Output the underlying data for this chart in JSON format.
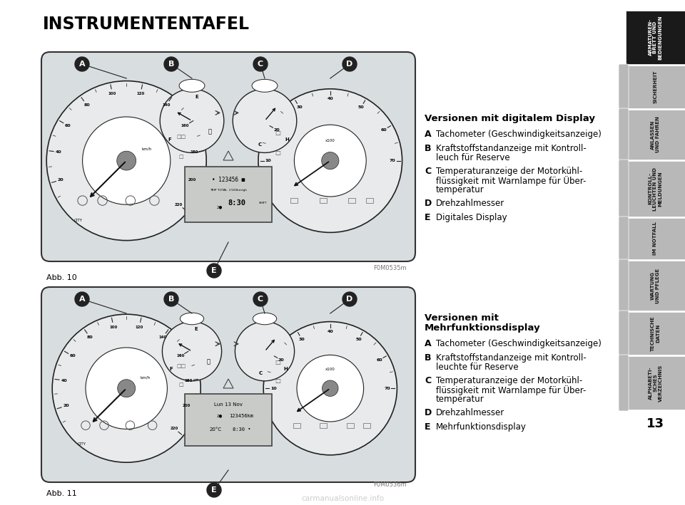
{
  "title": "INSTRUMENTENTAFEL",
  "bg_color": "#ffffff",
  "tab_bg_active": "#1a1a1a",
  "tab_bg_inactive": "#b8b8b8",
  "tab_text_active": "#ffffff",
  "tab_text_inactive": "#1a1a1a",
  "tab_labels": [
    "ARMATUREN-\nBRETT UND\nBEDIENGUNGEN",
    "SICHERHEIT",
    "ANLASSEN\nUND FAHREN",
    "KONTROLL-\nLEUCHTEN UND\nMELDUNGEN",
    "IM NOTFALL",
    "WARTUNG\nUND PFLEGE",
    "TECHNISCHE\nDATEN",
    "ALPHABETI-\nSCHES\nVERZEICHNIS"
  ],
  "tab_heights": [
    75,
    60,
    70,
    78,
    58,
    70,
    60,
    75
  ],
  "page_number": "13",
  "section1_heading": "Versionen mit digitalem Display",
  "section1_items": [
    [
      "A",
      "Tachometer (Geschwindigkeitsanzeige)"
    ],
    [
      "B",
      "Kraftstoffstandanzeige mit Kontroll-\nleuch für Reserve"
    ],
    [
      "C",
      "Temperaturanzeige der Motorkühl-\nflüssigkeit mit Warnlampe für Über-\ntemperatur"
    ],
    [
      "D",
      "Drehzahlmesser"
    ],
    [
      "E",
      "Digitales Display"
    ]
  ],
  "section2_heading": "Versionen mit\nMehrfunktionsdisplay",
  "section2_items": [
    [
      "A",
      "Tachometer (Geschwindigkeitsanzeige)"
    ],
    [
      "B",
      "Kraftstoffstandanzeige mit Kontroll-\nleuchte für Reserve"
    ],
    [
      "C",
      "Temperaturanzeige der Motorkühl-\nflüssigkeit mit Warnlampe für Über-\ntemperatur"
    ],
    [
      "D",
      "Drehzahlmesser"
    ],
    [
      "E",
      "Mehrfunktionsdisplay"
    ]
  ],
  "fig1_label": "Abb. 10",
  "fig2_label": "Abb. 11",
  "fig1_code": "F0M0535m",
  "fig2_code": "F0M0536m",
  "watermark": "carmanualsonline.info",
  "cluster_fill": "#d8dde0",
  "cluster_stroke": "#333333",
  "gauge_fill": "#e8eaec",
  "gauge_stroke": "#222222",
  "needle_color": "#111111",
  "display_fill": "#c8cbc8",
  "display_stroke": "#444444"
}
